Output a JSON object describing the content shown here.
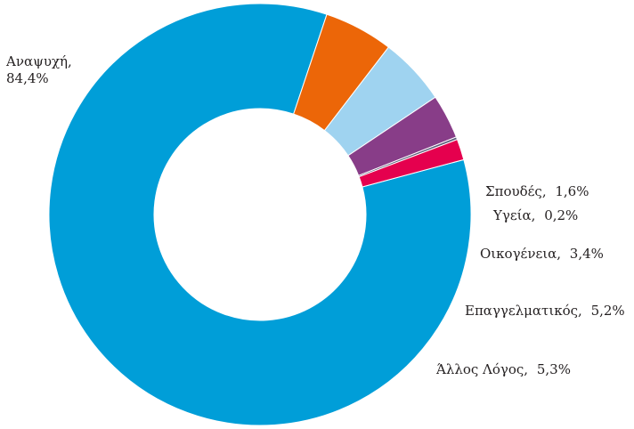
{
  "chart_data": {
    "type": "pie",
    "donut": true,
    "categories": [
      "Αναψυχή",
      "Άλλος Λόγος",
      "Επαγγελματικός",
      "Οικογένεια",
      "Υγεία",
      "Σπουδές"
    ],
    "values": [
      84.4,
      5.3,
      5.2,
      3.4,
      0.2,
      1.6
    ],
    "colors": [
      "#009ed8",
      "#ec6608",
      "#9fd3f0",
      "#883d88",
      "#5b5b7a",
      "#e5004e"
    ],
    "labels": [
      {
        "name": "Αναψυχή,",
        "value": "84,4%"
      },
      {
        "name": "Άλλος Λόγος,",
        "value": "5,3%"
      },
      {
        "name": "Επαγγελματικός,",
        "value": "5,2%"
      },
      {
        "name": "Οικογένεια,",
        "value": "3,4%"
      },
      {
        "name": "Υγεία,",
        "value": "0,2%"
      },
      {
        "name": "Σπουδές,",
        "value": "1,6%"
      }
    ],
    "title": "",
    "legend": "none"
  }
}
